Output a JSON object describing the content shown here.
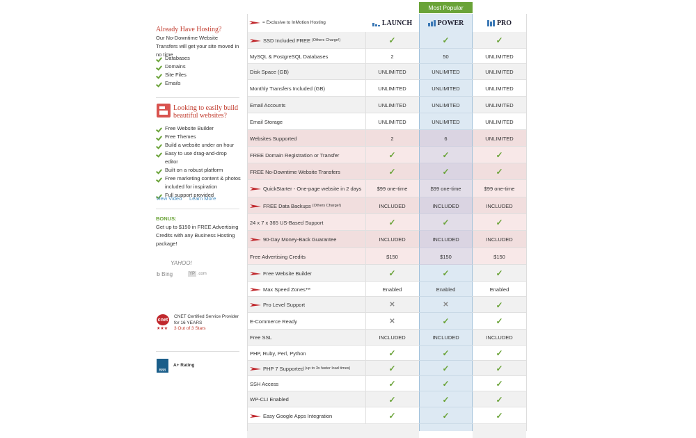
{
  "sidebar": {
    "hosting": {
      "title": "Already Have Hosting?",
      "text": "Our No-Downtime Website Transfers will get your site moved in no time",
      "items": [
        "Databases",
        "Domains",
        "Site Files",
        "Emails"
      ]
    },
    "builder": {
      "title": "Looking to easily build beautiful websites?",
      "items": [
        "Free Website Builder",
        "Free Themes",
        "Build a website under an hour",
        "Easy to use drag-and-drop editor",
        "Built on a robust platform",
        "Free marketing content & photos included for inspiration",
        "Full support provided"
      ],
      "links": [
        "View Video",
        "Learn More"
      ]
    },
    "bonus": {
      "title": "BONUS:",
      "text": "Get up to $150 in FREE Advertising Credits with any Business Hosting package!"
    },
    "logos": {
      "yahoo": "YAHOO!",
      "bing": "Bing",
      "yp": "YP",
      "yp_suffix": ".com"
    },
    "cnet": {
      "logo": "cnet",
      "text": "CNET Certified Service Provider for 16 YEARS",
      "stars": "★★★",
      "rating": "3 Out of 3 Stars"
    },
    "bbb": {
      "logo": "BBB",
      "text": "A+ Rating"
    }
  },
  "table": {
    "legend": "= Exclusive to InMotion Hosting",
    "badge": "Most Popular",
    "plans": [
      "LAUNCH",
      "POWER",
      "PRO"
    ],
    "rows": [
      {
        "label": "SSD Included FREE",
        "note": "(Others Charge!)",
        "exclusive": true,
        "cells": [
          "✓",
          "✓",
          "✓"
        ]
      },
      {
        "label": "MySQL & PostgreSQL Databases",
        "cells": [
          "2",
          "50",
          "UNLIMITED"
        ]
      },
      {
        "label": "Disk Space (GB)",
        "cells": [
          "UNLIMITED",
          "UNLIMITED",
          "UNLIMITED"
        ]
      },
      {
        "label": "Monthly Transfers Included (GB)",
        "cells": [
          "UNLIMITED",
          "UNLIMITED",
          "UNLIMITED"
        ]
      },
      {
        "label": "Email Accounts",
        "cells": [
          "UNLIMITED",
          "UNLIMITED",
          "UNLIMITED"
        ]
      },
      {
        "label": "Email Storage",
        "cells": [
          "UNLIMITED",
          "UNLIMITED",
          "UNLIMITED"
        ]
      },
      {
        "label": "Websites Supported",
        "highlight": true,
        "cells": [
          "2",
          "6",
          "UNLIMITED"
        ]
      },
      {
        "label": "FREE Domain Registration or Transfer",
        "highlight": true,
        "cells": [
          "✓",
          "✓",
          "✓"
        ]
      },
      {
        "label": "FREE No-Downtime Website Transfers",
        "highlight": true,
        "cells": [
          "✓",
          "✓",
          "✓"
        ]
      },
      {
        "label": "QuickStarter - One-page website in 2 days",
        "exclusive": true,
        "highlight": true,
        "cells": [
          "$99 one-time",
          "$99 one-time",
          "$99 one-time"
        ]
      },
      {
        "label": "FREE Data Backups",
        "note": "(Others Charge!)",
        "exclusive": true,
        "highlight": true,
        "cells": [
          "INCLUDED",
          "INCLUDED",
          "INCLUDED"
        ]
      },
      {
        "label": "24 x 7 x 365 US-Based Support",
        "highlight": true,
        "cells": [
          "✓",
          "✓",
          "✓"
        ]
      },
      {
        "label": "90-Day Money-Back Guarantee",
        "exclusive": true,
        "highlight": true,
        "cells": [
          "INCLUDED",
          "INCLUDED",
          "INCLUDED"
        ]
      },
      {
        "label": "Free Advertising Credits",
        "highlight": true,
        "cells": [
          "$150",
          "$150",
          "$150"
        ]
      },
      {
        "label": "Free Website Builder",
        "exclusive": true,
        "cells": [
          "✓",
          "✓",
          "✓"
        ]
      },
      {
        "label": "Max Speed Zones™",
        "exclusive": true,
        "cells": [
          "Enabled",
          "Enabled",
          "Enabled"
        ]
      },
      {
        "label": "Pro Level Support",
        "exclusive": true,
        "cells": [
          "✕",
          "✕",
          "✓"
        ]
      },
      {
        "label": "E-Commerce Ready",
        "cells": [
          "✕",
          "✓",
          "✓"
        ]
      },
      {
        "label": "Free SSL",
        "cells": [
          "INCLUDED",
          "INCLUDED",
          "INCLUDED"
        ]
      },
      {
        "label": "PHP, Ruby, Perl, Python",
        "cells": [
          "✓",
          "✓",
          "✓"
        ]
      },
      {
        "label": "PHP 7 Supported",
        "note": "(up to 3x faster load times)",
        "exclusive": true,
        "cells": [
          "✓",
          "✓",
          "✓"
        ]
      },
      {
        "label": "SSH Access",
        "cells": [
          "✓",
          "✓",
          "✓"
        ]
      },
      {
        "label": "WP-CLI Enabled",
        "cells": [
          "✓",
          "✓",
          "✓"
        ]
      },
      {
        "label": "Easy Google Apps Integration",
        "exclusive": true,
        "cells": [
          "✓",
          "✓",
          "✓"
        ]
      }
    ]
  }
}
